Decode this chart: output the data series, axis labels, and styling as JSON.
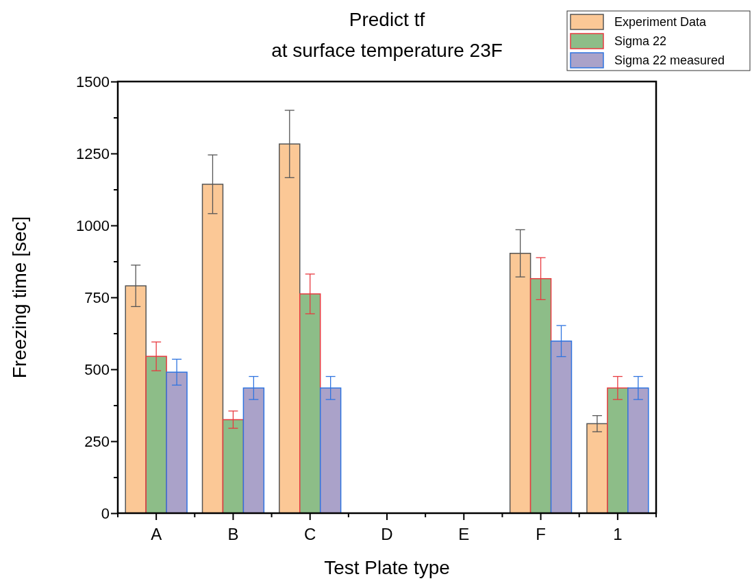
{
  "chart_data": {
    "type": "bar",
    "title": "Predict tf\nat surface temperature 23F",
    "xlabel": "Test Plate type",
    "ylabel": "Freezing time [sec]",
    "categories": [
      "A",
      "B",
      "C",
      "D",
      "E",
      "F",
      "1"
    ],
    "series": [
      {
        "name": "Experiment Data",
        "color": "#fbc896",
        "values": [
          790,
          1143,
          1283,
          null,
          null,
          903,
          311
        ],
        "errors": [
          72,
          102,
          117,
          null,
          null,
          82,
          28
        ]
      },
      {
        "name": "Sigma 22",
        "color": "#8dbd88",
        "values": [
          545,
          325,
          762,
          null,
          null,
          815,
          435
        ],
        "errors": [
          50,
          30,
          69,
          null,
          null,
          73,
          40
        ]
      },
      {
        "name": "Sigma 22 measured",
        "color": "#aaa2c9",
        "values": [
          490,
          435,
          435,
          null,
          null,
          598,
          435
        ],
        "errors": [
          45,
          40,
          40,
          null,
          null,
          54,
          40
        ]
      }
    ],
    "ylim": [
      0,
      1500
    ],
    "yticks": [
      0,
      {
        "value": 125,
        "label": null
      },
      250,
      {
        "value": 375,
        "label": null
      },
      500,
      {
        "value": 625,
        "label": null
      },
      750,
      {
        "value": 875,
        "label": null
      },
      1000,
      {
        "value": 1125,
        "label": null
      },
      1250,
      {
        "value": 1375,
        "label": null
      },
      1500
    ],
    "grid": false,
    "legend": "top right"
  }
}
